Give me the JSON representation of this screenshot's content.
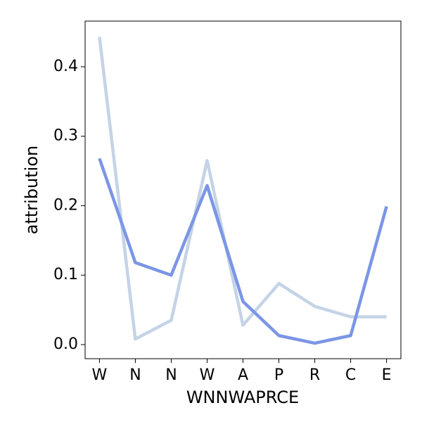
{
  "chart_data": {
    "type": "line",
    "categories": [
      "W",
      "N",
      "N",
      "W",
      "A",
      "P",
      "R",
      "C",
      "E"
    ],
    "x_label": "WNNWAPRCE",
    "y_label": "attribution",
    "series": [
      {
        "color": "#c5d3e6",
        "values": [
          0.443,
          0.008,
          0.035,
          0.265,
          0.028,
          0.088,
          0.055,
          0.04,
          0.04
        ]
      },
      {
        "color": "#7b96e6",
        "values": [
          0.268,
          0.118,
          0.1,
          0.229,
          0.062,
          0.013,
          0.002,
          0.013,
          0.199
        ]
      }
    ],
    "ylim": [
      -0.0203,
      0.4658
    ],
    "yticks": [
      {
        "value": 0,
        "label": "0.0"
      },
      0.1,
      0.2,
      0.3,
      0.4
    ]
  }
}
